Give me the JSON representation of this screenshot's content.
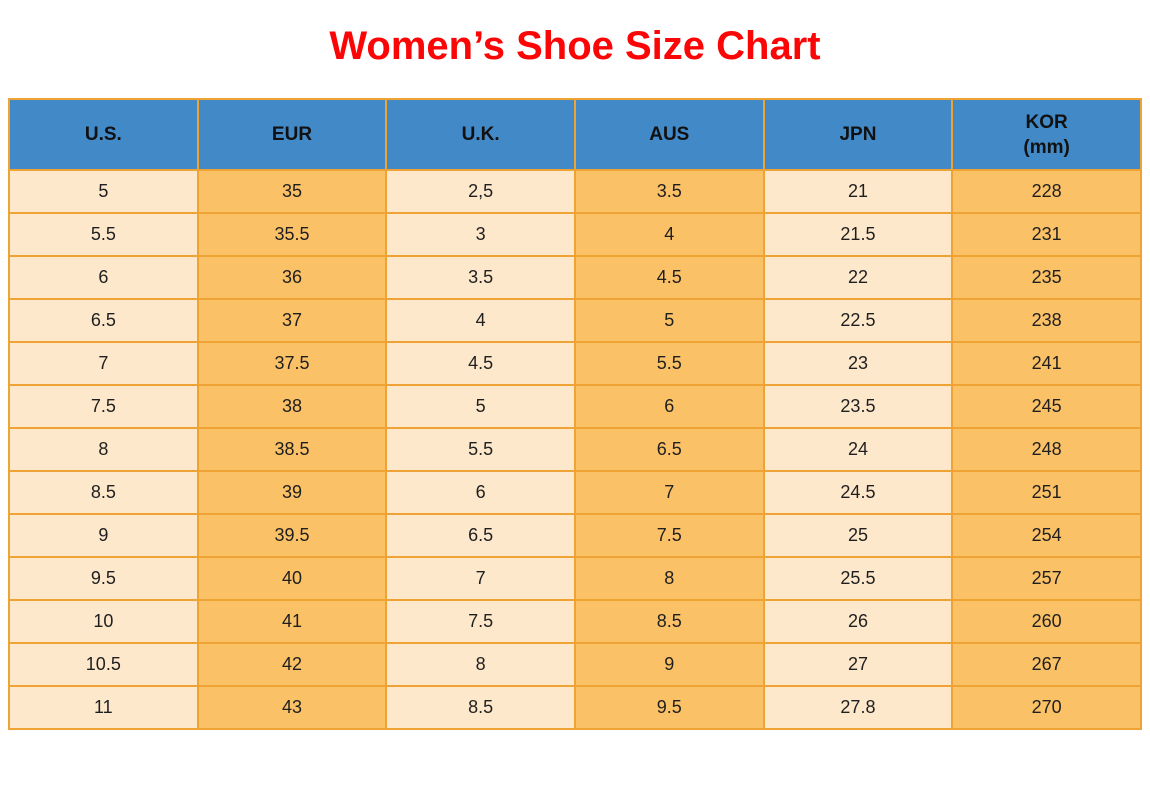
{
  "title": "Women’s Shoe Size Chart",
  "chart_data": {
    "type": "table",
    "title": "Women’s Shoe Size Chart",
    "columns": [
      {
        "label": "U.S."
      },
      {
        "label": "EUR"
      },
      {
        "label": "U.K."
      },
      {
        "label": "AUS"
      },
      {
        "label": "JPN"
      },
      {
        "label": "KOR",
        "sublabel": "(mm)"
      }
    ],
    "rows": [
      [
        "5",
        "35",
        "2,5",
        "3.5",
        "21",
        "228"
      ],
      [
        "5.5",
        "35.5",
        "3",
        "4",
        "21.5",
        "231"
      ],
      [
        "6",
        "36",
        "3.5",
        "4.5",
        "22",
        "235"
      ],
      [
        "6.5",
        "37",
        "4",
        "5",
        "22.5",
        "238"
      ],
      [
        "7",
        "37.5",
        "4.5",
        "5.5",
        "23",
        "241"
      ],
      [
        "7.5",
        "38",
        "5",
        "6",
        "23.5",
        "245"
      ],
      [
        "8",
        "38.5",
        "5.5",
        "6.5",
        "24",
        "248"
      ],
      [
        "8.5",
        "39",
        "6",
        "7",
        "24.5",
        "251"
      ],
      [
        "9",
        "39.5",
        "6.5",
        "7.5",
        "25",
        "254"
      ],
      [
        "9.5",
        "40",
        "7",
        "8",
        "25.5",
        "257"
      ],
      [
        "10",
        "41",
        "7.5",
        "8.5",
        "26",
        "260"
      ],
      [
        "10.5",
        "42",
        "8",
        "9",
        "27",
        "267"
      ],
      [
        "11",
        "43",
        "8.5",
        "9.5",
        "27.8",
        "270"
      ]
    ]
  },
  "colors": {
    "title": "#fb0606",
    "header_bg": "#4289c8",
    "header_text": "#111111",
    "cell_cream": "#fde8cb",
    "cell_orange": "#fbc167",
    "border": "#f0a335",
    "cell_text": "#1f1f1f"
  }
}
